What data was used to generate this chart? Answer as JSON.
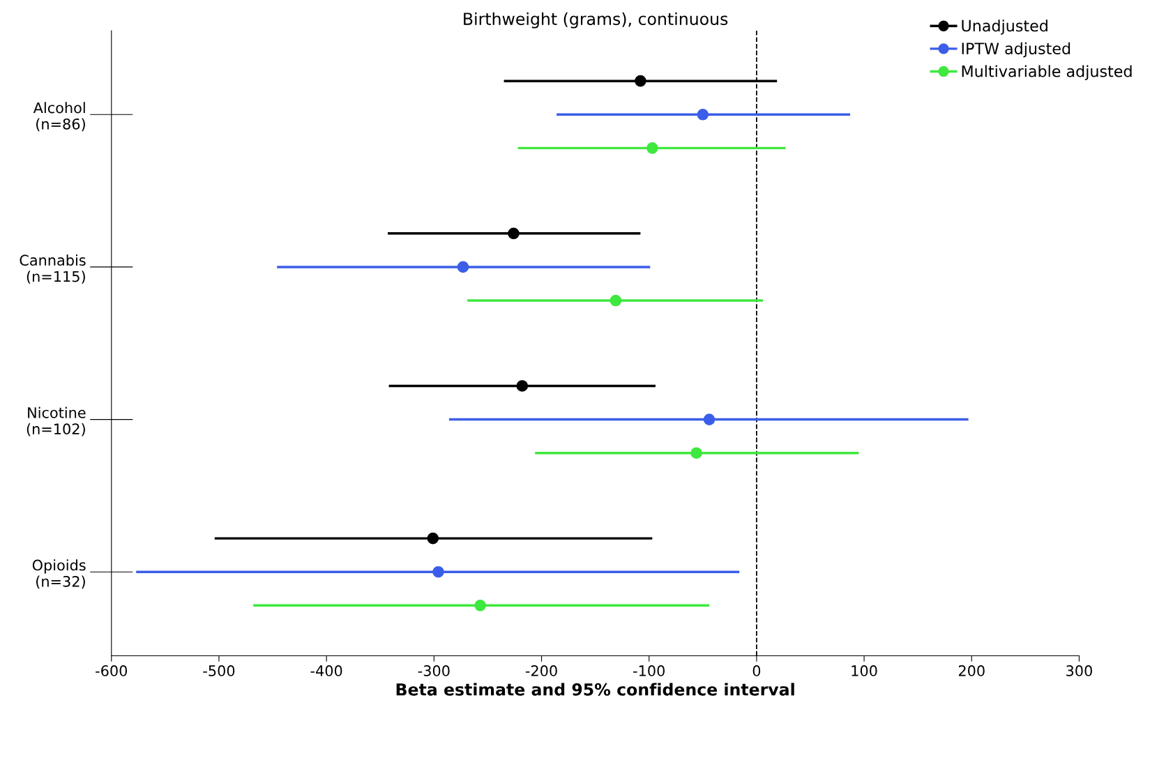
{
  "chart_data": {
    "type": "scatter",
    "orientation": "horizontal",
    "title": "Birthweight (grams), continuous",
    "xlabel": "Beta estimate and 95% confidence interval",
    "categories": [
      "Alcohol\n(n=86)",
      "Cannabis\n(n=115)",
      "Nicotine\n(n=102)",
      "Opioids\n(n=32)"
    ],
    "series": [
      {
        "name": "Unadjusted",
        "color": "#000000",
        "values": [
          -108,
          -226,
          -218,
          -301
        ],
        "errors": [
          [
            -235,
            19
          ],
          [
            -343,
            -108
          ],
          [
            -342,
            -94
          ],
          [
            -504,
            -97
          ]
        ]
      },
      {
        "name": "IPTW adjusted",
        "color": "#3b5ee8",
        "values": [
          -50,
          -273,
          -44,
          -296
        ],
        "errors": [
          [
            -186,
            87
          ],
          [
            -446,
            -99
          ],
          [
            -286,
            197
          ],
          [
            -577,
            -16
          ]
        ]
      },
      {
        "name": "Multivariable adjusted",
        "color": "#3ee83e",
        "values": [
          -97,
          -131,
          -56,
          -257
        ],
        "errors": [
          [
            -222,
            27
          ],
          [
            -269,
            6
          ],
          [
            -206,
            95
          ],
          [
            -468,
            -44
          ]
        ]
      }
    ],
    "xlim": [
      -600,
      300
    ],
    "xticks": [
      -600,
      -500,
      -400,
      -300,
      -200,
      -100,
      0,
      100,
      200,
      300
    ],
    "ref_lines": [
      {
        "axis": "x",
        "value": 0,
        "color": "#000000",
        "line_style": "dashed"
      }
    ],
    "legend": "top right",
    "marker": "circle",
    "grid": false
  }
}
